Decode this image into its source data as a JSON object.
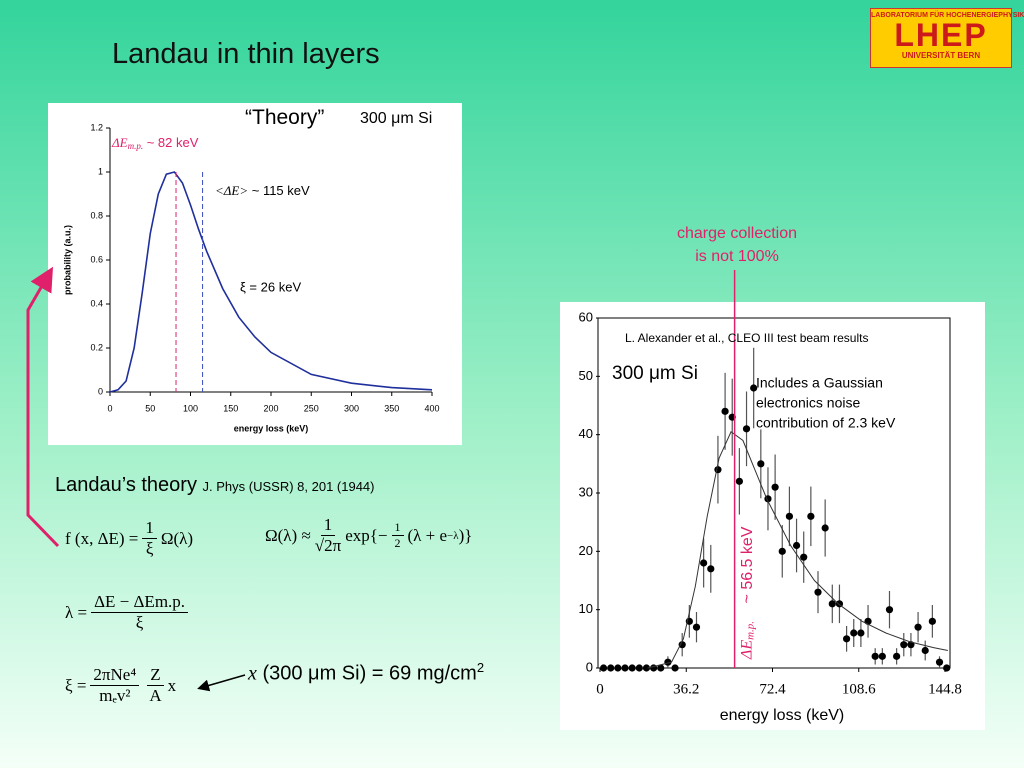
{
  "logo": {
    "line1": "LABORATORIUM FÜR HOCHENERGIEPHYSIK",
    "line2": "LHEP",
    "line3": "UNIVERSITÄT BERN"
  },
  "title": "Landau in thin layers",
  "theory_label": "“Theory”",
  "theory_sub": "300 μm Si",
  "chart_data": [
    {
      "type": "line",
      "xlabel": "energy loss (keV)",
      "ylabel": "probability (a.u.)",
      "xlim": [
        0,
        400
      ],
      "ylim": [
        0,
        1.2
      ],
      "xticks": [
        0,
        50,
        100,
        150,
        200,
        250,
        300,
        350,
        400
      ],
      "yticks": [
        0,
        0.2,
        0.4,
        0.6,
        0.8,
        1,
        1.2
      ],
      "series": [
        {
          "color": "#1f2f9c",
          "x": [
            0,
            10,
            20,
            30,
            40,
            50,
            60,
            70,
            80,
            90,
            100,
            110,
            120,
            140,
            160,
            180,
            200,
            250,
            300,
            350,
            400
          ],
          "values": [
            0,
            0.01,
            0.05,
            0.2,
            0.45,
            0.72,
            0.9,
            0.99,
            1.0,
            0.95,
            0.85,
            0.74,
            0.64,
            0.47,
            0.34,
            0.25,
            0.18,
            0.08,
            0.04,
            0.02,
            0.01
          ]
        }
      ],
      "markers": [
        {
          "x": 82,
          "color": "#e0206a",
          "symbol": "ΔE",
          "sub": "m.p.",
          "label": " ~ 82 keV"
        },
        {
          "x": 115,
          "color": "#3a4cc0",
          "symbol": "<ΔE>",
          "label": " ~ 115 keV"
        }
      ],
      "annotations": [
        "ξ = 26 keV"
      ]
    },
    {
      "type": "scatter",
      "xlabel": "energy loss (keV)",
      "xlim": [
        0,
        146.9
      ],
      "ylim": [
        0,
        60
      ],
      "xticks": [
        0,
        36.2,
        72.4,
        108.6,
        144.8
      ],
      "yticks": [
        0,
        10,
        20,
        30,
        40,
        50,
        60
      ],
      "series": [
        {
          "type": "points",
          "color": "#000000",
          "x": [
            1.5,
            4.5,
            7.5,
            10.5,
            13.5,
            16.5,
            19.5,
            22.5,
            25.5,
            28.5,
            31.5,
            34.5,
            37.5,
            40.5,
            43.5,
            46.5,
            49.5,
            52.5,
            55.5,
            58.5,
            61.5,
            64.5,
            67.5,
            70.5,
            73.5,
            76.5,
            79.5,
            82.5,
            85.5,
            88.5,
            91.5,
            94.5,
            97.5,
            100.5,
            103.5,
            106.5,
            109.5,
            112.5,
            115.5,
            118.5,
            121.5,
            124.5,
            127.5,
            130.5,
            133.5,
            136.5,
            139.5,
            142.5,
            145.5
          ],
          "values": [
            0,
            0,
            0,
            0,
            0,
            0,
            0,
            0,
            0,
            1,
            0,
            4,
            8,
            7,
            18,
            17,
            34,
            44,
            43,
            32,
            41,
            48,
            35,
            29,
            31,
            20,
            26,
            21,
            19,
            26,
            13,
            24,
            11,
            11,
            5,
            6,
            6,
            8,
            2,
            2,
            10,
            2,
            4,
            4,
            7,
            3,
            8,
            1,
            0
          ],
          "errors": [
            0,
            0,
            0,
            0,
            0,
            0,
            0,
            0,
            0,
            1,
            0,
            2,
            2.8,
            2.6,
            4.2,
            4.1,
            5.8,
            6.6,
            6.6,
            5.7,
            6.4,
            6.9,
            5.9,
            5.4,
            5.6,
            4.5,
            5.1,
            4.6,
            4.4,
            5.1,
            3.6,
            4.9,
            3.3,
            3.3,
            2.2,
            2.4,
            2.4,
            2.8,
            1.4,
            1.4,
            3.2,
            1.4,
            2,
            2,
            2.6,
            1.7,
            2.8,
            1,
            0
          ]
        },
        {
          "type": "line",
          "color": "#333333",
          "x": [
            20,
            30,
            35,
            40,
            45,
            50,
            55,
            60,
            65,
            70,
            80,
            90,
            100,
            110,
            120,
            130,
            140,
            146
          ],
          "values": [
            0,
            1,
            5,
            14,
            26,
            36,
            40.5,
            39,
            34,
            29,
            21,
            15,
            11,
            8,
            6,
            4.5,
            3.5,
            3
          ]
        }
      ],
      "markers": [
        {
          "x": 56.5,
          "color": "#e0206a",
          "symbol": "ΔE",
          "sub": "m.p.",
          "label": "~ 56.5 keV"
        }
      ],
      "annotations": [
        "L. Alexander et al., CLEO III test beam results",
        "300 μm Si"
      ],
      "note_lines": [
        "Includes a Gaussian",
        "electronics noise",
        "contribution of 2.3 keV"
      ],
      "charge_lines": [
        "charge collection",
        "is  not 100%"
      ]
    }
  ],
  "landau_ref": {
    "text": "Landau’s theory",
    "citation": "J. Phys (USSR) 8, 201 (1944)"
  },
  "formulas": {
    "f": {
      "lhs": "f (x, ΔE) =",
      "num": "1",
      "den": "ξ",
      "rhs": "Ω(λ)"
    },
    "omega": {
      "lhs": "Ω(λ) ≈",
      "num": "1",
      "den": "√2π",
      "pre": "exp{−",
      "hnum": "1",
      "hden": "2",
      "post": "(λ + e",
      "sup": "−λ",
      "close": ")}"
    },
    "lambda": {
      "lhs": "λ =",
      "num": "ΔE − ΔEm.p.",
      "den": "ξ"
    },
    "xi": {
      "lhs": "ξ =",
      "num": "2πNe⁴",
      "den": "mₑv²",
      "num2": "Z",
      "den2": "A",
      "rhs": "x"
    }
  },
  "x_note": {
    "var": "x",
    "paren": "(300 μm Si)",
    "value": "= 69 mg/cm",
    "sup": "2"
  }
}
